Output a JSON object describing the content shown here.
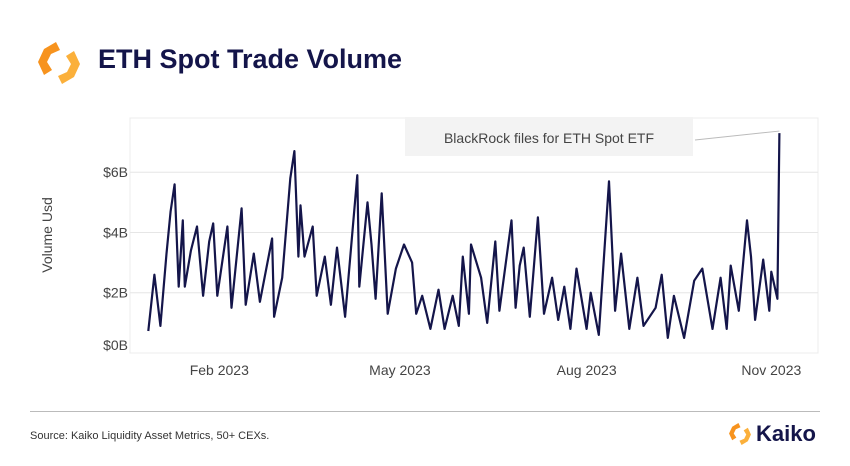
{
  "header": {
    "title": "ETH Spot Trade Volume",
    "logo_icon": "kaiko-hexagon-logo"
  },
  "footer": {
    "source": "Source: Kaiko Liquidity Asset Metrics, 50+ CEXs.",
    "brand": "Kaiko"
  },
  "colors": {
    "line": "#14154a",
    "logo_orange": "#f7931e",
    "logo_yellow": "#fbb03b",
    "grid": "#e6e6e6"
  },
  "chart_data": {
    "type": "line",
    "title": "ETH Spot Trade Volume",
    "ylabel": "Volume Usd",
    "xlabel": "",
    "ylim": [
      0,
      7.8
    ],
    "xlim": [
      "2022-12-23",
      "2023-11-27"
    ],
    "yticks": [
      {
        "value": 0,
        "label": "$0B"
      },
      {
        "value": 2,
        "label": "$2B"
      },
      {
        "value": 4,
        "label": "$4B"
      },
      {
        "value": 6,
        "label": "$6B"
      }
    ],
    "xticks": [
      {
        "date": "2023-02-05",
        "label": "Feb 2023"
      },
      {
        "date": "2023-05-05",
        "label": "May 2023"
      },
      {
        "date": "2023-08-05",
        "label": "Aug 2023"
      },
      {
        "date": "2023-11-04",
        "label": "Nov 2023"
      }
    ],
    "grid": true,
    "annotation": {
      "text": "BlackRock files for ETH Spot ETF",
      "date": "2023-11-08",
      "value": 7.3
    },
    "series": [
      {
        "x": [
          "2023-01-01",
          "2023-01-04",
          "2023-01-07",
          "2023-01-10",
          "2023-01-12",
          "2023-01-14",
          "2023-01-16",
          "2023-01-18",
          "2023-01-19",
          "2023-01-22",
          "2023-01-25",
          "2023-01-28",
          "2023-01-31",
          "2023-02-02",
          "2023-02-04",
          "2023-02-09",
          "2023-02-11",
          "2023-02-16",
          "2023-02-18",
          "2023-02-22",
          "2023-02-25",
          "2023-03-03",
          "2023-03-04",
          "2023-03-08",
          "2023-03-12",
          "2023-03-14",
          "2023-03-16",
          "2023-03-17",
          "2023-03-19",
          "2023-03-23",
          "2023-03-25",
          "2023-03-29",
          "2023-04-01",
          "2023-04-04",
          "2023-04-08",
          "2023-04-14",
          "2023-04-15",
          "2023-04-19",
          "2023-04-21",
          "2023-04-23",
          "2023-04-26",
          "2023-04-29",
          "2023-05-03",
          "2023-05-07",
          "2023-05-11",
          "2023-05-13",
          "2023-05-16",
          "2023-05-20",
          "2023-05-24",
          "2023-05-27",
          "2023-05-31",
          "2023-06-03",
          "2023-06-05",
          "2023-06-08",
          "2023-06-09",
          "2023-06-14",
          "2023-06-17",
          "2023-06-21",
          "2023-06-23",
          "2023-06-29",
          "2023-07-01",
          "2023-07-03",
          "2023-07-05",
          "2023-07-08",
          "2023-07-12",
          "2023-07-15",
          "2023-07-19",
          "2023-07-22",
          "2023-07-25",
          "2023-07-28",
          "2023-07-31",
          "2023-08-05",
          "2023-08-07",
          "2023-08-11",
          "2023-08-16",
          "2023-08-19",
          "2023-08-22",
          "2023-08-26",
          "2023-08-30",
          "2023-09-02",
          "2023-09-08",
          "2023-09-11",
          "2023-09-14",
          "2023-09-17",
          "2023-09-22",
          "2023-09-27",
          "2023-10-01",
          "2023-10-06",
          "2023-10-10",
          "2023-10-13",
          "2023-10-15",
          "2023-10-19",
          "2023-10-23",
          "2023-10-25",
          "2023-10-27",
          "2023-10-31",
          "2023-11-03",
          "2023-11-04",
          "2023-11-07",
          "2023-11-08"
        ],
        "values": [
          0.73,
          2.6,
          0.9,
          3.3,
          4.7,
          5.6,
          2.2,
          4.4,
          2.2,
          3.4,
          4.2,
          1.9,
          3.7,
          4.3,
          1.9,
          4.2,
          1.5,
          4.8,
          1.6,
          3.3,
          1.7,
          3.8,
          1.2,
          2.5,
          5.8,
          6.7,
          3.2,
          4.9,
          3.2,
          4.2,
          1.9,
          3.2,
          1.6,
          3.5,
          1.2,
          5.9,
          2.2,
          5.0,
          3.6,
          1.8,
          5.3,
          1.3,
          2.8,
          3.6,
          3.0,
          1.3,
          1.9,
          0.8,
          2.1,
          0.8,
          1.9,
          0.9,
          3.2,
          1.3,
          3.6,
          2.5,
          1.0,
          3.7,
          1.4,
          4.4,
          1.5,
          2.9,
          3.5,
          1.2,
          4.5,
          1.3,
          2.5,
          1.1,
          2.2,
          0.8,
          2.8,
          0.8,
          2.0,
          0.6,
          5.7,
          1.4,
          3.3,
          0.8,
          2.5,
          0.9,
          1.5,
          2.6,
          0.5,
          1.9,
          0.5,
          2.4,
          2.8,
          0.8,
          2.5,
          0.8,
          2.9,
          1.4,
          4.4,
          3.2,
          1.1,
          3.1,
          1.4,
          2.7,
          1.8,
          7.3
        ]
      }
    ]
  }
}
